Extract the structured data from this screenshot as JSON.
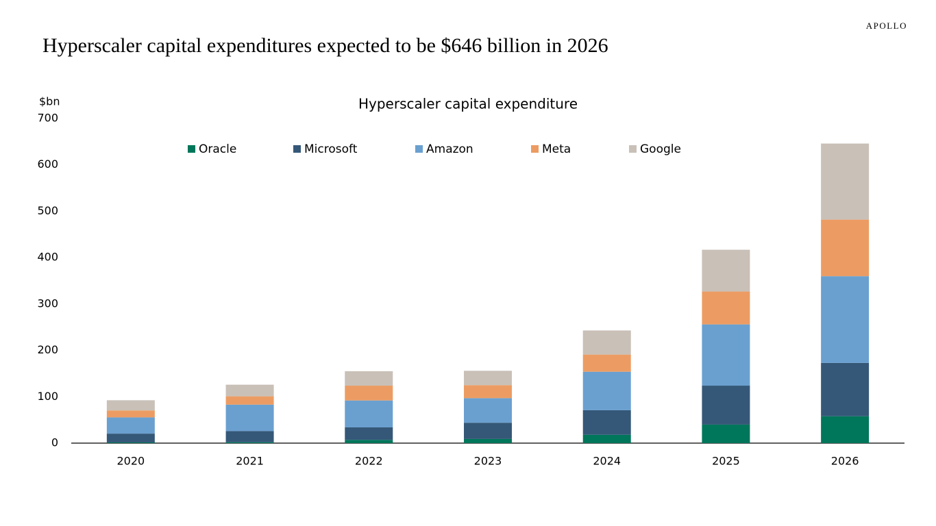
{
  "brand": "APOLLO",
  "headline": "Hyperscaler capital expenditures expected to be $646 billion in 2026",
  "chart_data": {
    "type": "stacked_bar",
    "title": "Hyperscaler capital expenditure",
    "y_label": "$bn",
    "categories": [
      "2020",
      "2021",
      "2022",
      "2023",
      "2024",
      "2025",
      "2026"
    ],
    "series": [
      {
        "name": "Oracle",
        "color": "#00765a",
        "values": [
          1.5,
          2,
          7,
          9,
          18,
          40,
          58
        ]
      },
      {
        "name": "Microsoft",
        "color": "#355878",
        "values": [
          19,
          24,
          27,
          35,
          53,
          84,
          115
        ]
      },
      {
        "name": "Amazon",
        "color": "#6aa0d0",
        "values": [
          35,
          57,
          58,
          53,
          83,
          132,
          187
        ]
      },
      {
        "name": "Meta",
        "color": "#ec9c63",
        "values": [
          15,
          18,
          32,
          28,
          37,
          71,
          122
        ]
      },
      {
        "name": "Google",
        "color": "#c9c0b8",
        "values": [
          22,
          25,
          31,
          31,
          52,
          90,
          164
        ]
      }
    ],
    "ylim": [
      0,
      700
    ],
    "yticks": [
      0,
      100,
      200,
      300,
      400,
      500,
      600,
      700
    ],
    "grid": false
  }
}
